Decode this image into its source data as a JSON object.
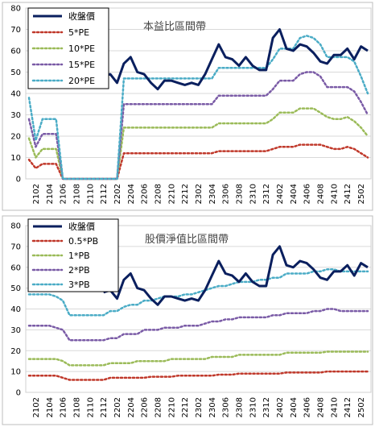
{
  "chart_data": [
    {
      "type": "line",
      "title": "本益比區間帶",
      "x": [
        "2101",
        "2102",
        "2103",
        "2104",
        "2105",
        "2106",
        "2107",
        "2108",
        "2109",
        "2110",
        "2111",
        "2112",
        "2201",
        "2202",
        "2203",
        "2204",
        "2205",
        "2206",
        "2207",
        "2208",
        "2209",
        "2210",
        "2211",
        "2212",
        "2301",
        "2302",
        "2303",
        "2304",
        "2305",
        "2306",
        "2307",
        "2308",
        "2309",
        "2310",
        "2311",
        "2312",
        "2401",
        "2402",
        "2403",
        "2404",
        "2405",
        "2406",
        "2407",
        "2408",
        "2409",
        "2410",
        "2411",
        "2412",
        "2501",
        "2502",
        "2503"
      ],
      "xticks": [
        "2102",
        "2104",
        "2106",
        "2108",
        "2110",
        "2112",
        "2202",
        "2204",
        "2206",
        "2208",
        "2210",
        "2212",
        "2302",
        "2304",
        "2306",
        "2308",
        "2310",
        "2312",
        "2402",
        "2404",
        "2406",
        "2408",
        "2410",
        "2412",
        "2502"
      ],
      "ylim": [
        0,
        80
      ],
      "yticks": [
        0,
        10,
        20,
        30,
        40,
        50,
        60,
        70,
        80
      ],
      "grid": true,
      "legend_position": "top-left",
      "series": [
        {
          "name": "收盤價",
          "color": "#0a1f5e",
          "style": "solid",
          "width": 3,
          "values": [
            null,
            null,
            null,
            null,
            null,
            null,
            null,
            null,
            null,
            null,
            null,
            48,
            49,
            45,
            54,
            57,
            50,
            49,
            45,
            42,
            46,
            46,
            45,
            44,
            45,
            44,
            49,
            56,
            63,
            57,
            56,
            53,
            57,
            53,
            51,
            51,
            66,
            70,
            61,
            60,
            63,
            62,
            59,
            55,
            54,
            58,
            58,
            61,
            56,
            62,
            60
          ]
        },
        {
          "name": "5*PE",
          "color": "#c0392b",
          "style": "dotted",
          "width": 2.5,
          "values": [
            9,
            5,
            7,
            7,
            7,
            0,
            0,
            0,
            0,
            0,
            0,
            0,
            0,
            0,
            12,
            12,
            12,
            12,
            12,
            12,
            12,
            12,
            12,
            12,
            12,
            12,
            12,
            12,
            13,
            13,
            13,
            13,
            13,
            13,
            13,
            13,
            14,
            15,
            15,
            15,
            16,
            16,
            16,
            16,
            15,
            14,
            14,
            15,
            14,
            12,
            10
          ]
        },
        {
          "name": "10*PE",
          "color": "#9bbb59",
          "style": "dotted",
          "width": 2.5,
          "values": [
            19,
            10,
            14,
            14,
            14,
            0,
            0,
            0,
            0,
            0,
            0,
            0,
            0,
            0,
            24,
            24,
            24,
            24,
            24,
            24,
            24,
            24,
            24,
            24,
            24,
            24,
            24,
            24,
            26,
            26,
            26,
            26,
            26,
            26,
            26,
            26,
            28,
            31,
            31,
            31,
            33,
            33,
            33,
            31,
            29,
            28,
            28,
            29,
            27,
            24,
            20
          ]
        },
        {
          "name": "15*PE",
          "color": "#7a5ba6",
          "style": "dotted",
          "width": 2.5,
          "values": [
            28,
            15,
            21,
            21,
            21,
            0,
            0,
            0,
            0,
            0,
            0,
            0,
            0,
            0,
            35,
            35,
            35,
            35,
            35,
            35,
            35,
            35,
            35,
            35,
            35,
            35,
            35,
            35,
            39,
            39,
            39,
            39,
            39,
            39,
            39,
            39,
            42,
            46,
            46,
            46,
            49,
            50,
            50,
            48,
            43,
            43,
            43,
            43,
            41,
            36,
            30
          ]
        },
        {
          "name": "20*PE",
          "color": "#4bacc6",
          "style": "dotted",
          "width": 2.5,
          "values": [
            38,
            18,
            28,
            28,
            28,
            0,
            0,
            0,
            0,
            0,
            0,
            0,
            0,
            0,
            47,
            47,
            47,
            47,
            47,
            47,
            47,
            47,
            47,
            47,
            47,
            47,
            47,
            47,
            52,
            52,
            52,
            52,
            52,
            52,
            52,
            52,
            56,
            61,
            61,
            61,
            66,
            67,
            66,
            63,
            57,
            57,
            57,
            57,
            55,
            48,
            40
          ]
        }
      ]
    },
    {
      "type": "line",
      "title": "股價淨值比區間帶",
      "x": [
        "2101",
        "2102",
        "2103",
        "2104",
        "2105",
        "2106",
        "2107",
        "2108",
        "2109",
        "2110",
        "2111",
        "2112",
        "2201",
        "2202",
        "2203",
        "2204",
        "2205",
        "2206",
        "2207",
        "2208",
        "2209",
        "2210",
        "2211",
        "2212",
        "2301",
        "2302",
        "2303",
        "2304",
        "2305",
        "2306",
        "2307",
        "2308",
        "2309",
        "2310",
        "2311",
        "2312",
        "2401",
        "2402",
        "2403",
        "2404",
        "2405",
        "2406",
        "2407",
        "2408",
        "2409",
        "2410",
        "2411",
        "2412",
        "2501",
        "2502",
        "2503"
      ],
      "xticks": [
        "2102",
        "2104",
        "2106",
        "2108",
        "2110",
        "2112",
        "2202",
        "2204",
        "2206",
        "2208",
        "2210",
        "2212",
        "2302",
        "2304",
        "2306",
        "2308",
        "2310",
        "2312",
        "2402",
        "2404",
        "2406",
        "2408",
        "2410",
        "2412",
        "2502"
      ],
      "ylim": [
        0,
        80
      ],
      "yticks": [
        0,
        10,
        20,
        30,
        40,
        50,
        60,
        70,
        80
      ],
      "grid": true,
      "legend_position": "top-left",
      "series": [
        {
          "name": "收盤價",
          "color": "#0a1f5e",
          "style": "solid",
          "width": 3,
          "values": [
            null,
            null,
            null,
            null,
            null,
            null,
            null,
            null,
            null,
            null,
            null,
            48,
            49,
            45,
            54,
            57,
            50,
            49,
            45,
            42,
            46,
            46,
            45,
            44,
            45,
            44,
            49,
            56,
            63,
            57,
            56,
            53,
            57,
            53,
            51,
            51,
            66,
            70,
            61,
            60,
            63,
            62,
            59,
            55,
            54,
            58,
            58,
            61,
            56,
            62,
            60
          ]
        },
        {
          "name": "0.5*PB",
          "color": "#c0392b",
          "style": "dotted",
          "width": 2.5,
          "values": [
            8,
            8,
            8,
            8,
            8,
            7,
            6,
            6,
            6,
            6,
            6,
            6,
            7,
            7,
            7,
            7,
            7,
            7,
            7.5,
            7.5,
            7.5,
            7.5,
            8,
            8,
            8,
            8,
            8,
            8,
            8.5,
            8.5,
            8.5,
            9,
            9,
            9,
            9,
            9,
            9,
            9,
            9.5,
            9.5,
            9.5,
            9.5,
            9.5,
            9.5,
            10,
            10,
            10,
            10,
            10,
            10,
            10
          ]
        },
        {
          "name": "1*PB",
          "color": "#9bbb59",
          "style": "dotted",
          "width": 2.5,
          "values": [
            16,
            16,
            16,
            16,
            16,
            15,
            13,
            13,
            13,
            13,
            13,
            13,
            14,
            14,
            14,
            14,
            15,
            15,
            15,
            15,
            15,
            16,
            16,
            16,
            16,
            16,
            16,
            17,
            17,
            17,
            17,
            18,
            18,
            18,
            18,
            18,
            18,
            18,
            19,
            19,
            19,
            19,
            19,
            19,
            19.5,
            19.5,
            19.5,
            19.5,
            19.5,
            19.5,
            19.5
          ]
        },
        {
          "name": "2*PB",
          "color": "#7a5ba6",
          "style": "dotted",
          "width": 2.5,
          "values": [
            32,
            32,
            32,
            32,
            31,
            30,
            25,
            25,
            25,
            25,
            25,
            25,
            26,
            26,
            28,
            28,
            28,
            30,
            30,
            30,
            31,
            31,
            31,
            32,
            32,
            32,
            33,
            34,
            34,
            35,
            35,
            36,
            36,
            36,
            36,
            36,
            37,
            37,
            38,
            38,
            38,
            38,
            39,
            39,
            40,
            40,
            39,
            39,
            39,
            39,
            39
          ]
        },
        {
          "name": "3*PB",
          "color": "#4bacc6",
          "style": "dotted",
          "width": 2.5,
          "values": [
            47,
            47,
            47,
            47,
            46,
            44,
            37,
            37,
            37,
            37,
            37,
            37,
            39,
            39,
            41,
            42,
            42,
            44,
            44,
            45,
            46,
            46,
            46,
            47,
            47,
            48,
            49,
            50,
            51,
            51,
            52,
            53,
            53,
            53,
            54,
            54,
            55,
            55,
            57,
            57,
            57,
            57,
            58,
            58,
            59,
            59,
            58,
            58,
            58,
            58,
            58
          ]
        }
      ]
    }
  ]
}
